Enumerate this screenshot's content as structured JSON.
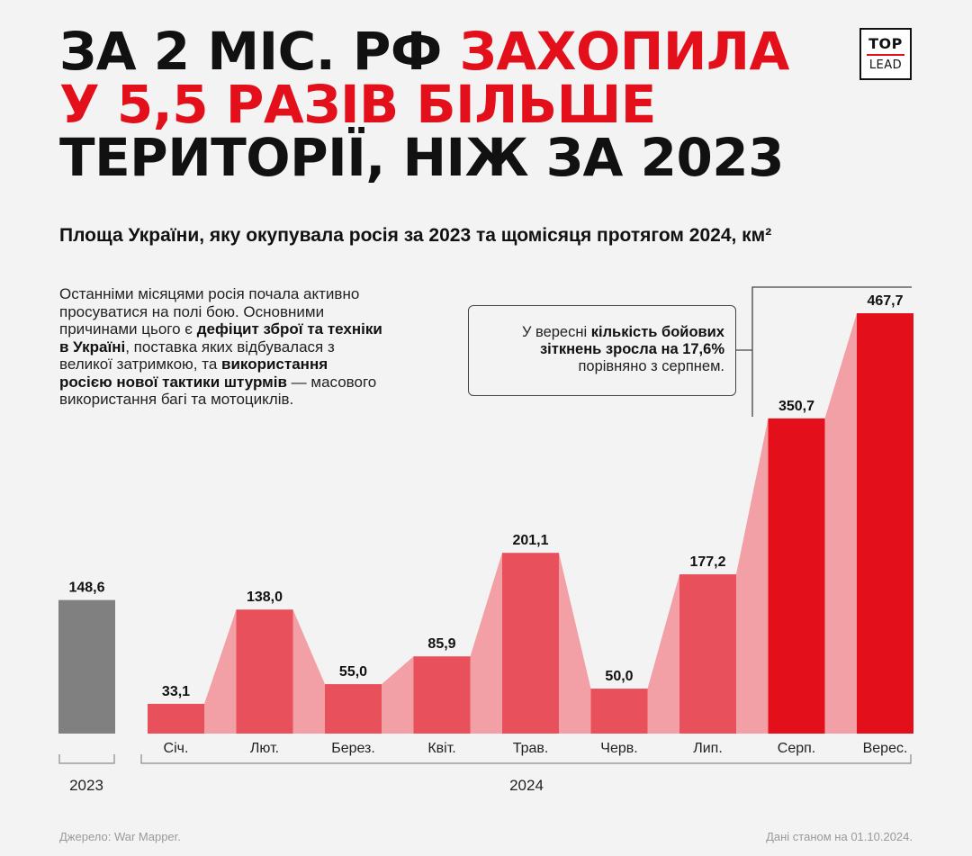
{
  "headline": {
    "line1_black": "ЗА 2 МІС. РФ ",
    "line1_red": "ЗАХОПИЛА",
    "line2_red": "У 5,5 РАЗІВ БІЛЬШЕ",
    "line3_black": "ТЕРИТОРІЇ, НІЖ ЗА 2023"
  },
  "logo": {
    "top": "TOP",
    "bottom": "LEAD"
  },
  "subtitle": "Площа України, яку окупувала росія за 2023 та щомісяця протягом 2024, км²",
  "description": {
    "p1": "Останніми місяцями росія почала активно просуватися на полі бою. Основними причинами цього є ",
    "b1": "дефіцит зброї та техніки в Україні",
    "p2": ", поставка яких відбувалася з великої затримкою, та ",
    "b2": "використання росією нової тактики штурмів",
    "p3": " — масового використання багі та мотоциклів."
  },
  "callout": {
    "t1": "У вересні ",
    "b1": "кількість бойових зіткнень зросла на 17,6%",
    "t2": " порівняно з серпнем."
  },
  "colors": {
    "gray": "#808080",
    "coral": "#e8505b",
    "red": "#e3101c",
    "connector": "#f2a0a6"
  },
  "chart_data": {
    "type": "bar",
    "title": "Площа України, яку окупувала росія за 2023 та щомісяця протягом 2024, км²",
    "groups": [
      {
        "label": "2023",
        "categories": [
          ""
        ],
        "values": [
          148.6
        ],
        "value_labels": [
          "148,6"
        ]
      },
      {
        "label": "2024",
        "categories": [
          "Січ.",
          "Лют.",
          "Берез.",
          "Квіт.",
          "Трав.",
          "Черв.",
          "Лип.",
          "Серп.",
          "Верес."
        ],
        "values": [
          33.1,
          138.0,
          55.0,
          85.9,
          201.1,
          50.0,
          177.2,
          350.7,
          467.7
        ],
        "value_labels": [
          "33,1",
          "138,0",
          "55,0",
          "85,9",
          "201,1",
          "50,0",
          "177,2",
          "350,7",
          "467,7"
        ]
      }
    ],
    "bar_colors_2024": [
      "coral",
      "coral",
      "coral",
      "coral",
      "coral",
      "coral",
      "coral",
      "red",
      "red"
    ],
    "ylim": [
      0,
      467.7
    ],
    "grid": false,
    "legend": "none"
  },
  "footer": {
    "source": "Джерело: War Mapper.",
    "date": "Дані станом на 01.10.2024."
  }
}
